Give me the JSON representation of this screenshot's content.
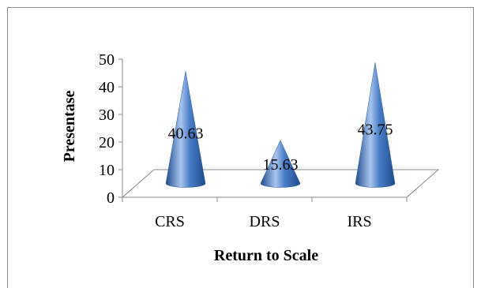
{
  "chart_data": {
    "type": "bar",
    "bar_shape": "cone",
    "view": "3d",
    "title": "",
    "xlabel": "Return to Scale",
    "ylabel": "Presentase",
    "categories": [
      "CRS",
      "DRS",
      "IRS"
    ],
    "values": [
      40.63,
      15.63,
      43.75
    ],
    "data_labels": [
      "40.63",
      "15.63",
      "43.75"
    ],
    "ylim": [
      0,
      50
    ],
    "yticks": [
      "0",
      "10",
      "20",
      "30",
      "40",
      "50"
    ],
    "grid": false,
    "legend": "none",
    "colors": {
      "bar_fill": "#4a7ec8",
      "bar_light": "#a9c6ee",
      "bar_dark": "#1f4c8c",
      "axis": "#888888",
      "text": "#000000"
    }
  }
}
